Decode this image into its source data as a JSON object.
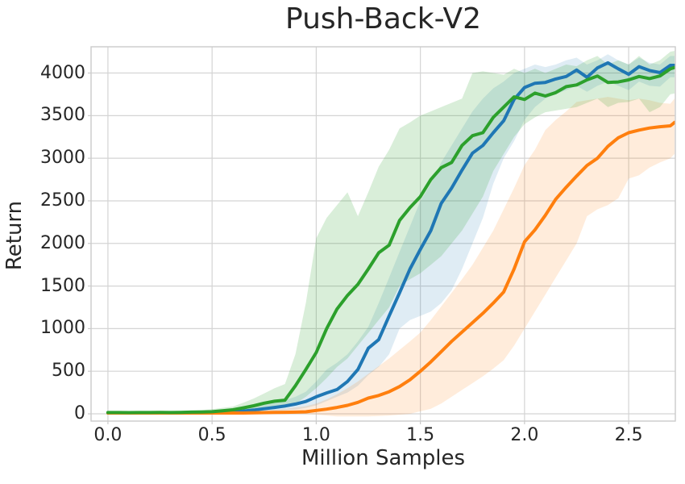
{
  "chart_data": {
    "type": "line",
    "title": "Push-Back-V2",
    "xlabel": "Million Samples",
    "ylabel": "Return",
    "legend_position": "none",
    "grid": true,
    "xlim": [
      -0.081,
      2.724
    ],
    "ylim": [
      -85,
      4308
    ],
    "x_ticks": [
      "0.0",
      "0.5",
      "1.0",
      "1.5",
      "2.0",
      "2.5"
    ],
    "x_tick_values": [
      0.0,
      0.5,
      1.0,
      1.5,
      2.0,
      2.5
    ],
    "y_ticks": [
      "0",
      "500",
      "1000",
      "1500",
      "2000",
      "2500",
      "3000",
      "3500",
      "4000"
    ],
    "y_tick_values": [
      0,
      500,
      1000,
      1500,
      2000,
      2500,
      3000,
      3500,
      4000
    ],
    "grid_color": "#d4d4d4",
    "spine_color": "#cbcbcb",
    "text_color": "#262626",
    "x": [
      0.0,
      0.05,
      0.1,
      0.15,
      0.2,
      0.25,
      0.3,
      0.35,
      0.4,
      0.45,
      0.5,
      0.55,
      0.6,
      0.65,
      0.7,
      0.75,
      0.8,
      0.85,
      0.9,
      0.95,
      1.0,
      1.05,
      1.1,
      1.15,
      1.2,
      1.25,
      1.3,
      1.35,
      1.4,
      1.45,
      1.5,
      1.55,
      1.6,
      1.65,
      1.7,
      1.75,
      1.8,
      1.85,
      1.9,
      1.95,
      2.0,
      2.05,
      2.1,
      2.15,
      2.2,
      2.25,
      2.3,
      2.35,
      2.4,
      2.45,
      2.5,
      2.55,
      2.6,
      2.65,
      2.7,
      2.72
    ],
    "series": [
      {
        "name": "blue-series",
        "color": "#1f77b4",
        "band_opacity": 0.14,
        "line_width": 4,
        "mean": [
          12,
          12,
          12,
          12,
          13,
          13,
          13,
          14,
          15,
          16,
          18,
          20,
          25,
          32,
          45,
          60,
          75,
          92,
          115,
          145,
          200,
          245,
          285,
          380,
          520,
          770,
          870,
          1150,
          1420,
          1700,
          1930,
          2150,
          2470,
          2650,
          2860,
          3060,
          3150,
          3300,
          3440,
          3690,
          3830,
          3880,
          3890,
          3930,
          3960,
          4035,
          3950,
          4060,
          4120,
          4050,
          3985,
          4075,
          4030,
          4005,
          4090,
          4090
        ],
        "lower": [
          0,
          0,
          0,
          0,
          0,
          0,
          0,
          0,
          5,
          5,
          5,
          8,
          10,
          12,
          18,
          25,
          32,
          40,
          50,
          70,
          100,
          150,
          200,
          250,
          330,
          455,
          550,
          700,
          1000,
          1100,
          1150,
          1200,
          1300,
          1450,
          1700,
          2000,
          2300,
          2700,
          3000,
          3200,
          3450,
          3600,
          3700,
          3750,
          3800,
          3850,
          3780,
          3850,
          3900,
          3850,
          3800,
          3900,
          3850,
          3840,
          3950,
          3950
        ],
        "upper": [
          25,
          25,
          25,
          25,
          26,
          26,
          27,
          28,
          30,
          32,
          35,
          40,
          45,
          60,
          80,
          105,
          130,
          160,
          200,
          260,
          380,
          520,
          600,
          700,
          850,
          1020,
          1300,
          1600,
          1900,
          2200,
          2500,
          2700,
          2950,
          3150,
          3350,
          3550,
          3700,
          3820,
          3900,
          4000,
          4050,
          4100,
          4070,
          4100,
          4150,
          4180,
          4100,
          4150,
          4220,
          4150,
          4100,
          4180,
          4120,
          4100,
          4200,
          4200
        ]
      },
      {
        "name": "orange-series",
        "color": "#ff7f0e",
        "band_opacity": 0.15,
        "line_width": 4,
        "mean": [
          10,
          10,
          10,
          10,
          10,
          10,
          10,
          10,
          10,
          10,
          10,
          10,
          10,
          10,
          12,
          14,
          16,
          18,
          20,
          24,
          40,
          55,
          75,
          100,
          135,
          185,
          215,
          260,
          320,
          400,
          500,
          610,
          730,
          850,
          960,
          1070,
          1180,
          1300,
          1430,
          1700,
          2020,
          2160,
          2330,
          2520,
          2660,
          2790,
          2915,
          3000,
          3140,
          3240,
          3300,
          3330,
          3355,
          3370,
          3380,
          3420
        ],
        "lower": [
          0,
          0,
          0,
          0,
          0,
          0,
          0,
          0,
          0,
          0,
          0,
          0,
          0,
          0,
          0,
          0,
          0,
          0,
          0,
          0,
          -10,
          -20,
          -30,
          -30,
          -30,
          -30,
          -25,
          -20,
          -10,
          0,
          30,
          60,
          120,
          200,
          280,
          360,
          440,
          530,
          630,
          800,
          1000,
          1200,
          1400,
          1600,
          1800,
          2000,
          2320,
          2400,
          2450,
          2530,
          2760,
          2800,
          2890,
          2950,
          3000,
          3050
        ],
        "upper": [
          20,
          20,
          20,
          20,
          20,
          20,
          20,
          20,
          20,
          20,
          22,
          24,
          26,
          28,
          32,
          40,
          50,
          60,
          75,
          90,
          120,
          170,
          230,
          300,
          380,
          470,
          560,
          650,
          750,
          850,
          955,
          1100,
          1260,
          1420,
          1580,
          1750,
          1950,
          2150,
          2400,
          2650,
          2920,
          3100,
          3330,
          3450,
          3550,
          3660,
          3680,
          3700,
          3720,
          3700,
          3680,
          3700,
          3680,
          3650,
          3640,
          3700
        ]
      },
      {
        "name": "green-series",
        "color": "#2ca02c",
        "band_opacity": 0.18,
        "line_width": 4,
        "mean": [
          15,
          15,
          14,
          15,
          15,
          16,
          15,
          17,
          20,
          22,
          25,
          35,
          48,
          70,
          95,
          125,
          148,
          160,
          330,
          520,
          720,
          1000,
          1230,
          1390,
          1520,
          1700,
          1890,
          1980,
          2270,
          2420,
          2550,
          2750,
          2890,
          2950,
          3150,
          3265,
          3300,
          3480,
          3600,
          3720,
          3690,
          3765,
          3730,
          3770,
          3840,
          3860,
          3920,
          3965,
          3890,
          3895,
          3920,
          3960,
          3935,
          3965,
          4050,
          4065
        ],
        "lower": [
          0,
          0,
          0,
          0,
          0,
          0,
          0,
          5,
          5,
          5,
          8,
          10,
          15,
          25,
          35,
          50,
          62,
          70,
          120,
          200,
          300,
          420,
          550,
          650,
          800,
          950,
          1100,
          1250,
          1500,
          1580,
          1650,
          1750,
          1850,
          2000,
          2150,
          2350,
          2550,
          2850,
          3050,
          3250,
          3400,
          3480,
          3540,
          3560,
          3580,
          3600,
          3650,
          3700,
          3600,
          3650,
          3660,
          3700,
          3540,
          3600,
          3750,
          3760
        ],
        "upper": [
          30,
          30,
          30,
          30,
          30,
          32,
          32,
          35,
          40,
          45,
          55,
          70,
          85,
          130,
          180,
          240,
          300,
          350,
          700,
          1300,
          2060,
          2300,
          2450,
          2600,
          2320,
          2600,
          2900,
          3100,
          3350,
          3420,
          3500,
          3550,
          3600,
          3650,
          3700,
          4000,
          4020,
          4000,
          3980,
          4050,
          4000,
          4050,
          4000,
          4050,
          4100,
          4080,
          4150,
          4200,
          4100,
          4150,
          4100,
          4200,
          4100,
          4150,
          4250,
          4260
        ]
      }
    ]
  }
}
